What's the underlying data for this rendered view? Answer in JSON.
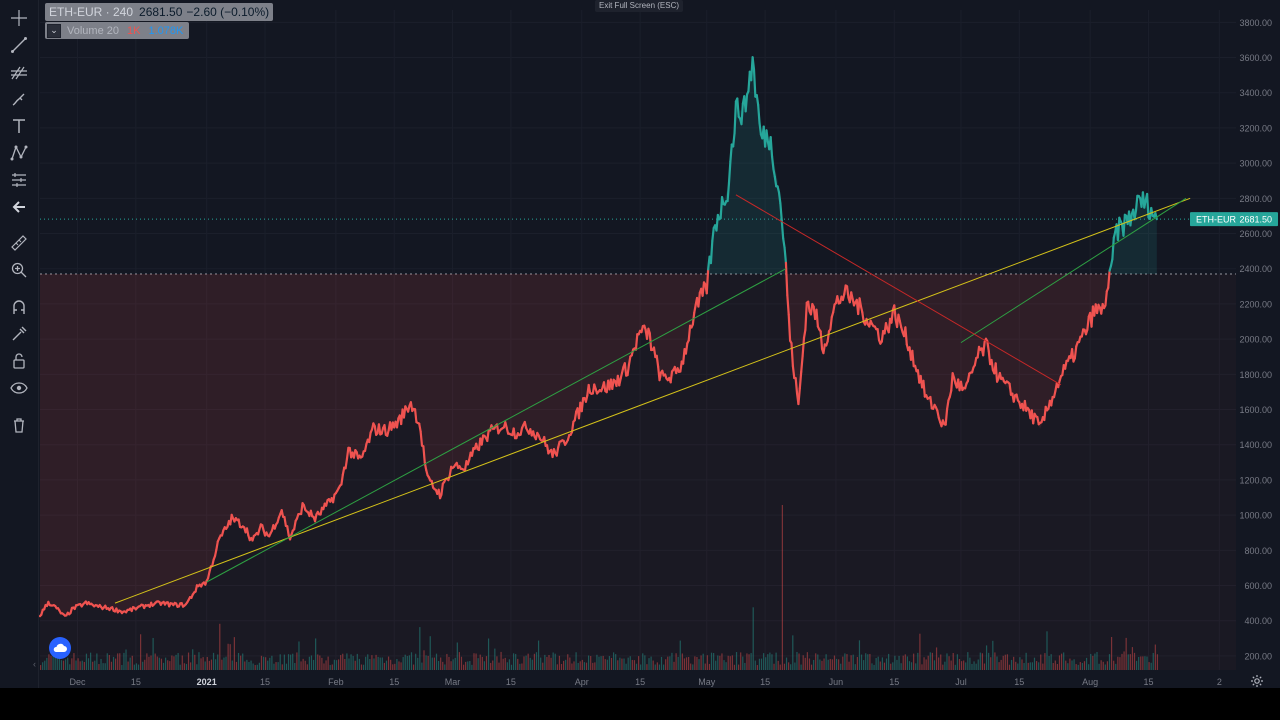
{
  "legend": {
    "symbol": "ETH-EUR · 240",
    "price": "2681.50",
    "change": "−2.60 (−0.10%)"
  },
  "volume_legend": {
    "name": "Volume 20",
    "value1": "1K",
    "value2": "1.078K"
  },
  "exit_fullscreen": "Exit Full Screen (ESC)",
  "price_label": {
    "symbol": "ETH-EUR",
    "price": "2681.50"
  },
  "toolbar": {
    "icons": [
      "crosshair-icon",
      "trend-line-icon",
      "pitchfork-icon",
      "brush-icon",
      "text-icon",
      "pattern-icon",
      "prediction-icon",
      "back-arrow-icon",
      "ruler-icon",
      "zoom-in-icon",
      "magnet-icon",
      "lock-drawings-icon",
      "unlock-icon",
      "eye-icon",
      "trash-icon"
    ]
  },
  "colors": {
    "background": "#131722",
    "up": "#26a69a",
    "down": "#ef5350",
    "trend_yellow": "#d4c21a",
    "trend_green": "#2ea043",
    "trend_red": "#c62828",
    "axis_text": "#787b86"
  },
  "chart_data": {
    "type": "line",
    "title": "",
    "y_axis": {
      "ticks": [
        200,
        400,
        600,
        800,
        1000,
        1200,
        1400,
        1600,
        1800,
        2000,
        2200,
        2400,
        2600,
        2800,
        3000,
        3200,
        3400,
        3600,
        3800
      ],
      "tick_labels": [
        "200.00",
        "400.00",
        "600.00",
        "800.00",
        "1000.00",
        "1200.00",
        "1400.00",
        "1600.00",
        "1800.00",
        "2000.00",
        "2200.00",
        "2400.00",
        "2600.00",
        "2800.00",
        "3000.00",
        "3200.00",
        "3400.00",
        "3600.00",
        "3800.00"
      ],
      "range": [
        120,
        3870
      ]
    },
    "x_axis": {
      "range": [
        "2020-11-22",
        "2021-09-05"
      ],
      "ticks": [
        {
          "date": "2020-12-01",
          "label": "Dec"
        },
        {
          "date": "2020-12-15",
          "label": "15"
        },
        {
          "date": "2021-01-01",
          "label": "2021"
        },
        {
          "date": "2021-01-15",
          "label": "15"
        },
        {
          "date": "2021-02-01",
          "label": "Feb"
        },
        {
          "date": "2021-02-15",
          "label": "15"
        },
        {
          "date": "2021-03-01",
          "label": "Mar"
        },
        {
          "date": "2021-03-15",
          "label": "15"
        },
        {
          "date": "2021-04-01",
          "label": "Apr"
        },
        {
          "date": "2021-04-15",
          "label": "15"
        },
        {
          "date": "2021-05-01",
          "label": "May"
        },
        {
          "date": "2021-05-15",
          "label": "15"
        },
        {
          "date": "2021-06-01",
          "label": "Jun"
        },
        {
          "date": "2021-06-15",
          "label": "15"
        },
        {
          "date": "2021-07-01",
          "label": "Jul"
        },
        {
          "date": "2021-07-15",
          "label": "15"
        },
        {
          "date": "2021-08-01",
          "label": "Aug"
        },
        {
          "date": "2021-08-15",
          "label": "15"
        },
        {
          "date": "2021-09-01",
          "label": "2"
        }
      ]
    },
    "baseline": 2370,
    "current_price": 2681.5,
    "series": [
      {
        "points": [
          [
            "2020-11-22",
            430
          ],
          [
            "2020-11-24",
            505
          ],
          [
            "2020-11-26",
            470
          ],
          [
            "2020-11-28",
            420
          ],
          [
            "2020-11-30",
            470
          ],
          [
            "2020-12-03",
            500
          ],
          [
            "2020-12-06",
            480
          ],
          [
            "2020-12-09",
            470
          ],
          [
            "2020-12-12",
            450
          ],
          [
            "2020-12-15",
            470
          ],
          [
            "2020-12-18",
            490
          ],
          [
            "2020-12-21",
            500
          ],
          [
            "2020-12-24",
            490
          ],
          [
            "2020-12-27",
            490
          ],
          [
            "2020-12-30",
            600
          ],
          [
            "2021-01-01",
            620
          ],
          [
            "2021-01-04",
            860
          ],
          [
            "2021-01-07",
            980
          ],
          [
            "2021-01-10",
            940
          ],
          [
            "2021-01-12",
            850
          ],
          [
            "2021-01-14",
            930
          ],
          [
            "2021-01-16",
            880
          ],
          [
            "2021-01-19",
            1030
          ],
          [
            "2021-01-21",
            870
          ],
          [
            "2021-01-24",
            1050
          ],
          [
            "2021-01-27",
            980
          ],
          [
            "2021-01-30",
            1060
          ],
          [
            "2021-02-02",
            1150
          ],
          [
            "2021-02-04",
            1370
          ],
          [
            "2021-02-07",
            1310
          ],
          [
            "2021-02-10",
            1490
          ],
          [
            "2021-02-13",
            1480
          ],
          [
            "2021-02-16",
            1530
          ],
          [
            "2021-02-19",
            1640
          ],
          [
            "2021-02-21",
            1530
          ],
          [
            "2021-02-23",
            1200
          ],
          [
            "2021-02-26",
            1120
          ],
          [
            "2021-03-01",
            1280
          ],
          [
            "2021-03-04",
            1270
          ],
          [
            "2021-03-07",
            1390
          ],
          [
            "2021-03-10",
            1470
          ],
          [
            "2021-03-13",
            1510
          ],
          [
            "2021-03-16",
            1470
          ],
          [
            "2021-03-19",
            1500
          ],
          [
            "2021-03-22",
            1450
          ],
          [
            "2021-03-25",
            1340
          ],
          [
            "2021-03-28",
            1420
          ],
          [
            "2021-03-31",
            1570
          ],
          [
            "2021-04-03",
            1730
          ],
          [
            "2021-04-06",
            1720
          ],
          [
            "2021-04-09",
            1750
          ],
          [
            "2021-04-12",
            1840
          ],
          [
            "2021-04-15",
            2040
          ],
          [
            "2021-04-17",
            2030
          ],
          [
            "2021-04-20",
            1780
          ],
          [
            "2021-04-23",
            1790
          ],
          [
            "2021-04-25",
            1860
          ],
          [
            "2021-04-28",
            2150
          ],
          [
            "2021-05-01",
            2300
          ],
          [
            "2021-05-03",
            2650
          ],
          [
            "2021-05-06",
            2850
          ],
          [
            "2021-05-08",
            3300
          ],
          [
            "2021-05-10",
            3300
          ],
          [
            "2021-05-12",
            3580
          ],
          [
            "2021-05-14",
            3150
          ],
          [
            "2021-05-16",
            3150
          ],
          [
            "2021-05-18",
            2900
          ],
          [
            "2021-05-19",
            2700
          ],
          [
            "2021-05-20",
            2400
          ],
          [
            "2021-05-21",
            2000
          ],
          [
            "2021-05-23",
            1620
          ],
          [
            "2021-05-25",
            2200
          ],
          [
            "2021-05-27",
            2150
          ],
          [
            "2021-05-29",
            1950
          ],
          [
            "2021-06-01",
            2200
          ],
          [
            "2021-06-03",
            2260
          ],
          [
            "2021-06-06",
            2200
          ],
          [
            "2021-06-09",
            2100
          ],
          [
            "2021-06-12",
            2010
          ],
          [
            "2021-06-15",
            2150
          ],
          [
            "2021-06-18",
            2000
          ],
          [
            "2021-06-21",
            1790
          ],
          [
            "2021-06-23",
            1650
          ],
          [
            "2021-06-25",
            1610
          ],
          [
            "2021-06-27",
            1490
          ],
          [
            "2021-06-29",
            1780
          ],
          [
            "2021-07-02",
            1700
          ],
          [
            "2021-07-05",
            1900
          ],
          [
            "2021-07-07",
            1960
          ],
          [
            "2021-07-10",
            1780
          ],
          [
            "2021-07-13",
            1700
          ],
          [
            "2021-07-16",
            1620
          ],
          [
            "2021-07-19",
            1540
          ],
          [
            "2021-07-20",
            1490
          ],
          [
            "2021-07-22",
            1620
          ],
          [
            "2021-07-25",
            1790
          ],
          [
            "2021-07-28",
            1910
          ],
          [
            "2021-07-31",
            2050
          ],
          [
            "2021-08-02",
            2160
          ],
          [
            "2021-08-04",
            2160
          ],
          [
            "2021-08-06",
            2370
          ],
          [
            "2021-08-07",
            2600
          ],
          [
            "2021-08-09",
            2650
          ],
          [
            "2021-08-11",
            2700
          ],
          [
            "2021-08-13",
            2790
          ],
          [
            "2021-08-15",
            2760
          ],
          [
            "2021-08-17",
            2681.5
          ]
        ]
      }
    ],
    "trend_lines": [
      {
        "name": "yellow-trendline",
        "color": "#d4c21a",
        "from": [
          "2020-12-10",
          500
        ],
        "to": [
          "2021-08-25",
          2800
        ]
      },
      {
        "name": "green-trendline-1",
        "color": "#2ea043",
        "from": [
          "2021-01-01",
          620
        ],
        "to": [
          "2021-05-20",
          2400
        ]
      },
      {
        "name": "green-trendline-2",
        "color": "#2ea043",
        "from": [
          "2021-07-01",
          1980
        ],
        "to": [
          "2021-08-24",
          2800
        ]
      },
      {
        "name": "red-trendline",
        "color": "#c62828",
        "from": [
          "2021-05-08",
          2820
        ],
        "to": [
          "2021-07-25",
          1740
        ]
      }
    ],
    "volume": {
      "max": 100,
      "spikes": [
        {
          "date": "2021-05-19",
          "value": 100
        },
        {
          "date": "2021-05-12",
          "value": 38
        },
        {
          "date": "2021-01-04",
          "value": 28
        },
        {
          "date": "2021-02-21",
          "value": 26
        },
        {
          "date": "2021-06-21",
          "value": 22
        },
        {
          "date": "2021-08-06",
          "value": 20
        }
      ]
    }
  }
}
